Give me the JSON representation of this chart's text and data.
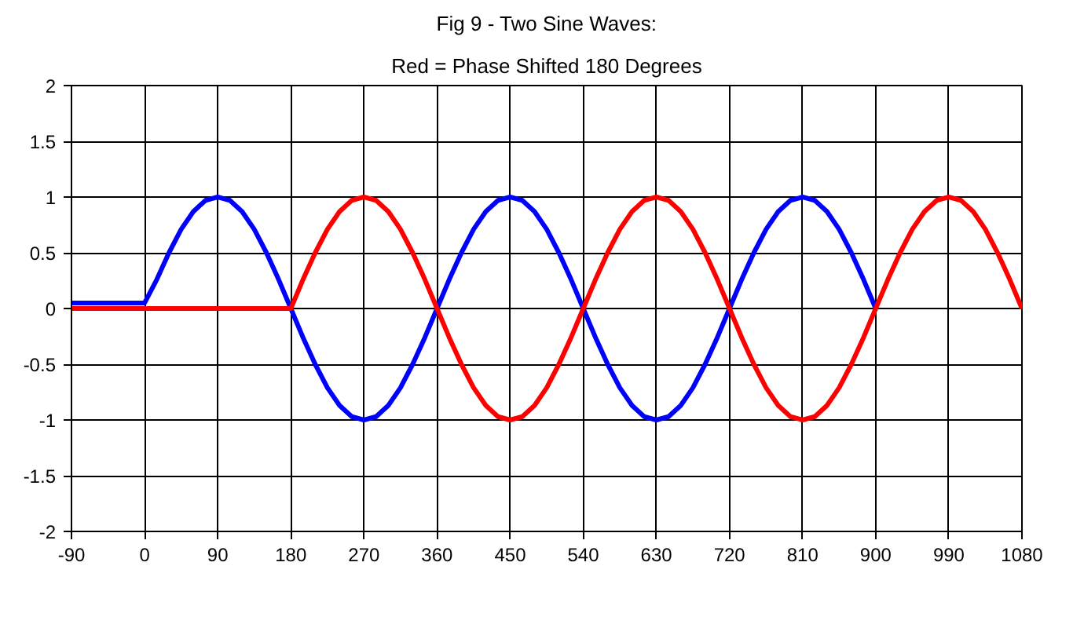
{
  "chart_data": {
    "type": "line",
    "title": "Fig 9 - Two Sine Waves:",
    "subtitle": "Red = Phase Shifted 180 Degrees",
    "xlim": [
      -90,
      1080
    ],
    "ylim": [
      -2,
      2
    ],
    "xticks": [
      -90,
      0,
      90,
      180,
      270,
      360,
      450,
      540,
      630,
      720,
      810,
      900,
      990,
      1080
    ],
    "yticks": [
      -2,
      -1.5,
      -1,
      -0.5,
      0,
      0.5,
      1,
      1.5,
      2
    ],
    "grid": true,
    "series": [
      {
        "color": "#0000ff",
        "x": [
          -90,
          0,
          15,
          30,
          45,
          60,
          75,
          90,
          105,
          120,
          135,
          150,
          165,
          180,
          195,
          210,
          225,
          240,
          255,
          270,
          285,
          300,
          315,
          330,
          345,
          360,
          375,
          390,
          405,
          420,
          435,
          450,
          465,
          480,
          495,
          510,
          525,
          540,
          555,
          570,
          585,
          600,
          615,
          630,
          645,
          660,
          675,
          690,
          705,
          720,
          735,
          750,
          765,
          780,
          795,
          810,
          825,
          840,
          855,
          870,
          885,
          900
        ],
        "values": [
          0.05,
          0.05,
          0.26,
          0.5,
          0.71,
          0.87,
          0.97,
          1,
          0.97,
          0.87,
          0.71,
          0.5,
          0.26,
          0,
          -0.26,
          -0.5,
          -0.71,
          -0.87,
          -0.97,
          -1,
          -0.97,
          -0.87,
          -0.71,
          -0.5,
          -0.26,
          0,
          0.26,
          0.5,
          0.71,
          0.87,
          0.97,
          1,
          0.97,
          0.87,
          0.71,
          0.5,
          0.26,
          0,
          -0.26,
          -0.5,
          -0.71,
          -0.87,
          -0.97,
          -1,
          -0.97,
          -0.87,
          -0.71,
          -0.5,
          -0.26,
          0,
          0.26,
          0.5,
          0.71,
          0.87,
          0.97,
          1,
          0.97,
          0.87,
          0.71,
          0.5,
          0.26,
          0
        ]
      },
      {
        "color": "#ff0000",
        "x": [
          -90,
          180,
          195,
          210,
          225,
          240,
          255,
          270,
          285,
          300,
          315,
          330,
          345,
          360,
          375,
          390,
          405,
          420,
          435,
          450,
          465,
          480,
          495,
          510,
          525,
          540,
          555,
          570,
          585,
          600,
          615,
          630,
          645,
          660,
          675,
          690,
          705,
          720,
          735,
          750,
          765,
          780,
          795,
          810,
          825,
          840,
          855,
          870,
          885,
          900,
          915,
          930,
          945,
          960,
          975,
          990,
          1005,
          1020,
          1035,
          1050,
          1065,
          1080
        ],
        "values": [
          0,
          0,
          0.26,
          0.5,
          0.71,
          0.87,
          0.97,
          1,
          0.97,
          0.87,
          0.71,
          0.5,
          0.26,
          0,
          -0.26,
          -0.5,
          -0.71,
          -0.87,
          -0.97,
          -1,
          -0.97,
          -0.87,
          -0.71,
          -0.5,
          -0.26,
          0,
          0.26,
          0.5,
          0.71,
          0.87,
          0.97,
          1,
          0.97,
          0.87,
          0.71,
          0.5,
          0.26,
          0,
          -0.26,
          -0.5,
          -0.71,
          -0.87,
          -0.97,
          -1,
          -0.97,
          -0.87,
          -0.71,
          -0.5,
          -0.26,
          0,
          0.26,
          0.5,
          0.71,
          0.87,
          0.97,
          1,
          0.97,
          0.87,
          0.71,
          0.5,
          0.26,
          0
        ]
      }
    ]
  }
}
